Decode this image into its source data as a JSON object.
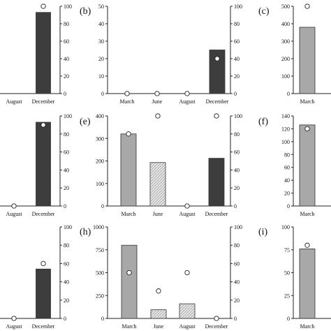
{
  "colors": {
    "march": "#a8a8a8",
    "june": "#cfcfcf",
    "august": "#bdbdbd",
    "december": "#3d3d3d",
    "axis": "#222222",
    "marker_fill": "#ffffff"
  },
  "chart_data": [
    {
      "panel": "a-fragment",
      "letter": "",
      "type": "bar",
      "categories": [
        "August",
        "December"
      ],
      "left_ylim": null,
      "right_ylim": [
        0,
        100
      ],
      "right_ticks": [
        0,
        20,
        40,
        60,
        80,
        100
      ],
      "bars": [
        null,
        93
      ],
      "bar_axis": "right",
      "circles": [
        null,
        100
      ]
    },
    {
      "panel": "b",
      "letter": "(b)",
      "type": "bar",
      "categories": [
        "March",
        "June",
        "August",
        "December"
      ],
      "left_ylim": [
        0,
        50
      ],
      "left_ticks": [
        0,
        10,
        20,
        30,
        40,
        50
      ],
      "right_ylim": [
        0,
        100
      ],
      "right_ticks": [
        0,
        20,
        40,
        60,
        80,
        100
      ],
      "bars": [
        0,
        0,
        0,
        25
      ],
      "bar_axis": "left",
      "circles": [
        0,
        0,
        0,
        40
      ]
    },
    {
      "panel": "c-fragment",
      "letter": "(c)",
      "type": "bar",
      "categories": [
        "March"
      ],
      "left_ylim": [
        0,
        500
      ],
      "left_ticks": [
        0,
        100,
        200,
        300,
        400,
        500
      ],
      "right_ylim": null,
      "bars": [
        380
      ],
      "bar_axis": "left",
      "circles": [
        500
      ]
    },
    {
      "panel": "d-fragment",
      "letter": "",
      "type": "bar",
      "categories": [
        "August",
        "December"
      ],
      "left_ylim": null,
      "right_ylim": [
        0,
        100
      ],
      "right_ticks": [
        0,
        20,
        40,
        60,
        80,
        100
      ],
      "bars": [
        0,
        93
      ],
      "bar_axis": "right",
      "circles": [
        0,
        90
      ]
    },
    {
      "panel": "e",
      "letter": "(e)",
      "type": "bar",
      "categories": [
        "March",
        "June",
        "August",
        "December"
      ],
      "left_ylim": [
        0,
        400
      ],
      "left_ticks": [
        0,
        100,
        200,
        300,
        400
      ],
      "right_ylim": [
        0,
        100
      ],
      "right_ticks": [
        0,
        20,
        40,
        60,
        80,
        100
      ],
      "bars": [
        320,
        193,
        0,
        212
      ],
      "bar_axis": "left",
      "circles": [
        80,
        100,
        0,
        100
      ]
    },
    {
      "panel": "f-fragment",
      "letter": "(f)",
      "type": "bar",
      "categories": [
        "March"
      ],
      "left_ylim": [
        0,
        140
      ],
      "left_ticks": [
        0,
        20,
        40,
        60,
        80,
        100,
        120,
        140
      ],
      "right_ylim": null,
      "bars": [
        126
      ],
      "bar_axis": "left",
      "circles": [
        120
      ]
    },
    {
      "panel": "g-fragment",
      "letter": "",
      "type": "bar",
      "categories": [
        "August",
        "December"
      ],
      "left_ylim": null,
      "right_ylim": [
        0,
        100
      ],
      "right_ticks": [
        0,
        20,
        40,
        60,
        80,
        100
      ],
      "bars": [
        0,
        54
      ],
      "bar_axis": "right",
      "circles": [
        0,
        60
      ]
    },
    {
      "panel": "h",
      "letter": "(h)",
      "type": "bar",
      "categories": [
        "March",
        "June",
        "August",
        "December"
      ],
      "left_ylim": [
        0,
        1000
      ],
      "left_ticks": [
        0,
        250,
        500,
        750,
        1000
      ],
      "right_ylim": [
        0,
        100
      ],
      "right_ticks": [
        0,
        20,
        40,
        60,
        80,
        100
      ],
      "bars": [
        800,
        95,
        160,
        0
      ],
      "bar_axis": "left",
      "circles": [
        50,
        30,
        50,
        0
      ]
    },
    {
      "panel": "i-fragment",
      "letter": "(i)",
      "type": "bar",
      "categories": [
        "March"
      ],
      "left_ylim": [
        0,
        100
      ],
      "left_ticks": [
        0,
        25,
        50,
        75,
        100
      ],
      "right_ylim": null,
      "bars": [
        76
      ],
      "bar_axis": "left",
      "circles": [
        80
      ]
    }
  ]
}
